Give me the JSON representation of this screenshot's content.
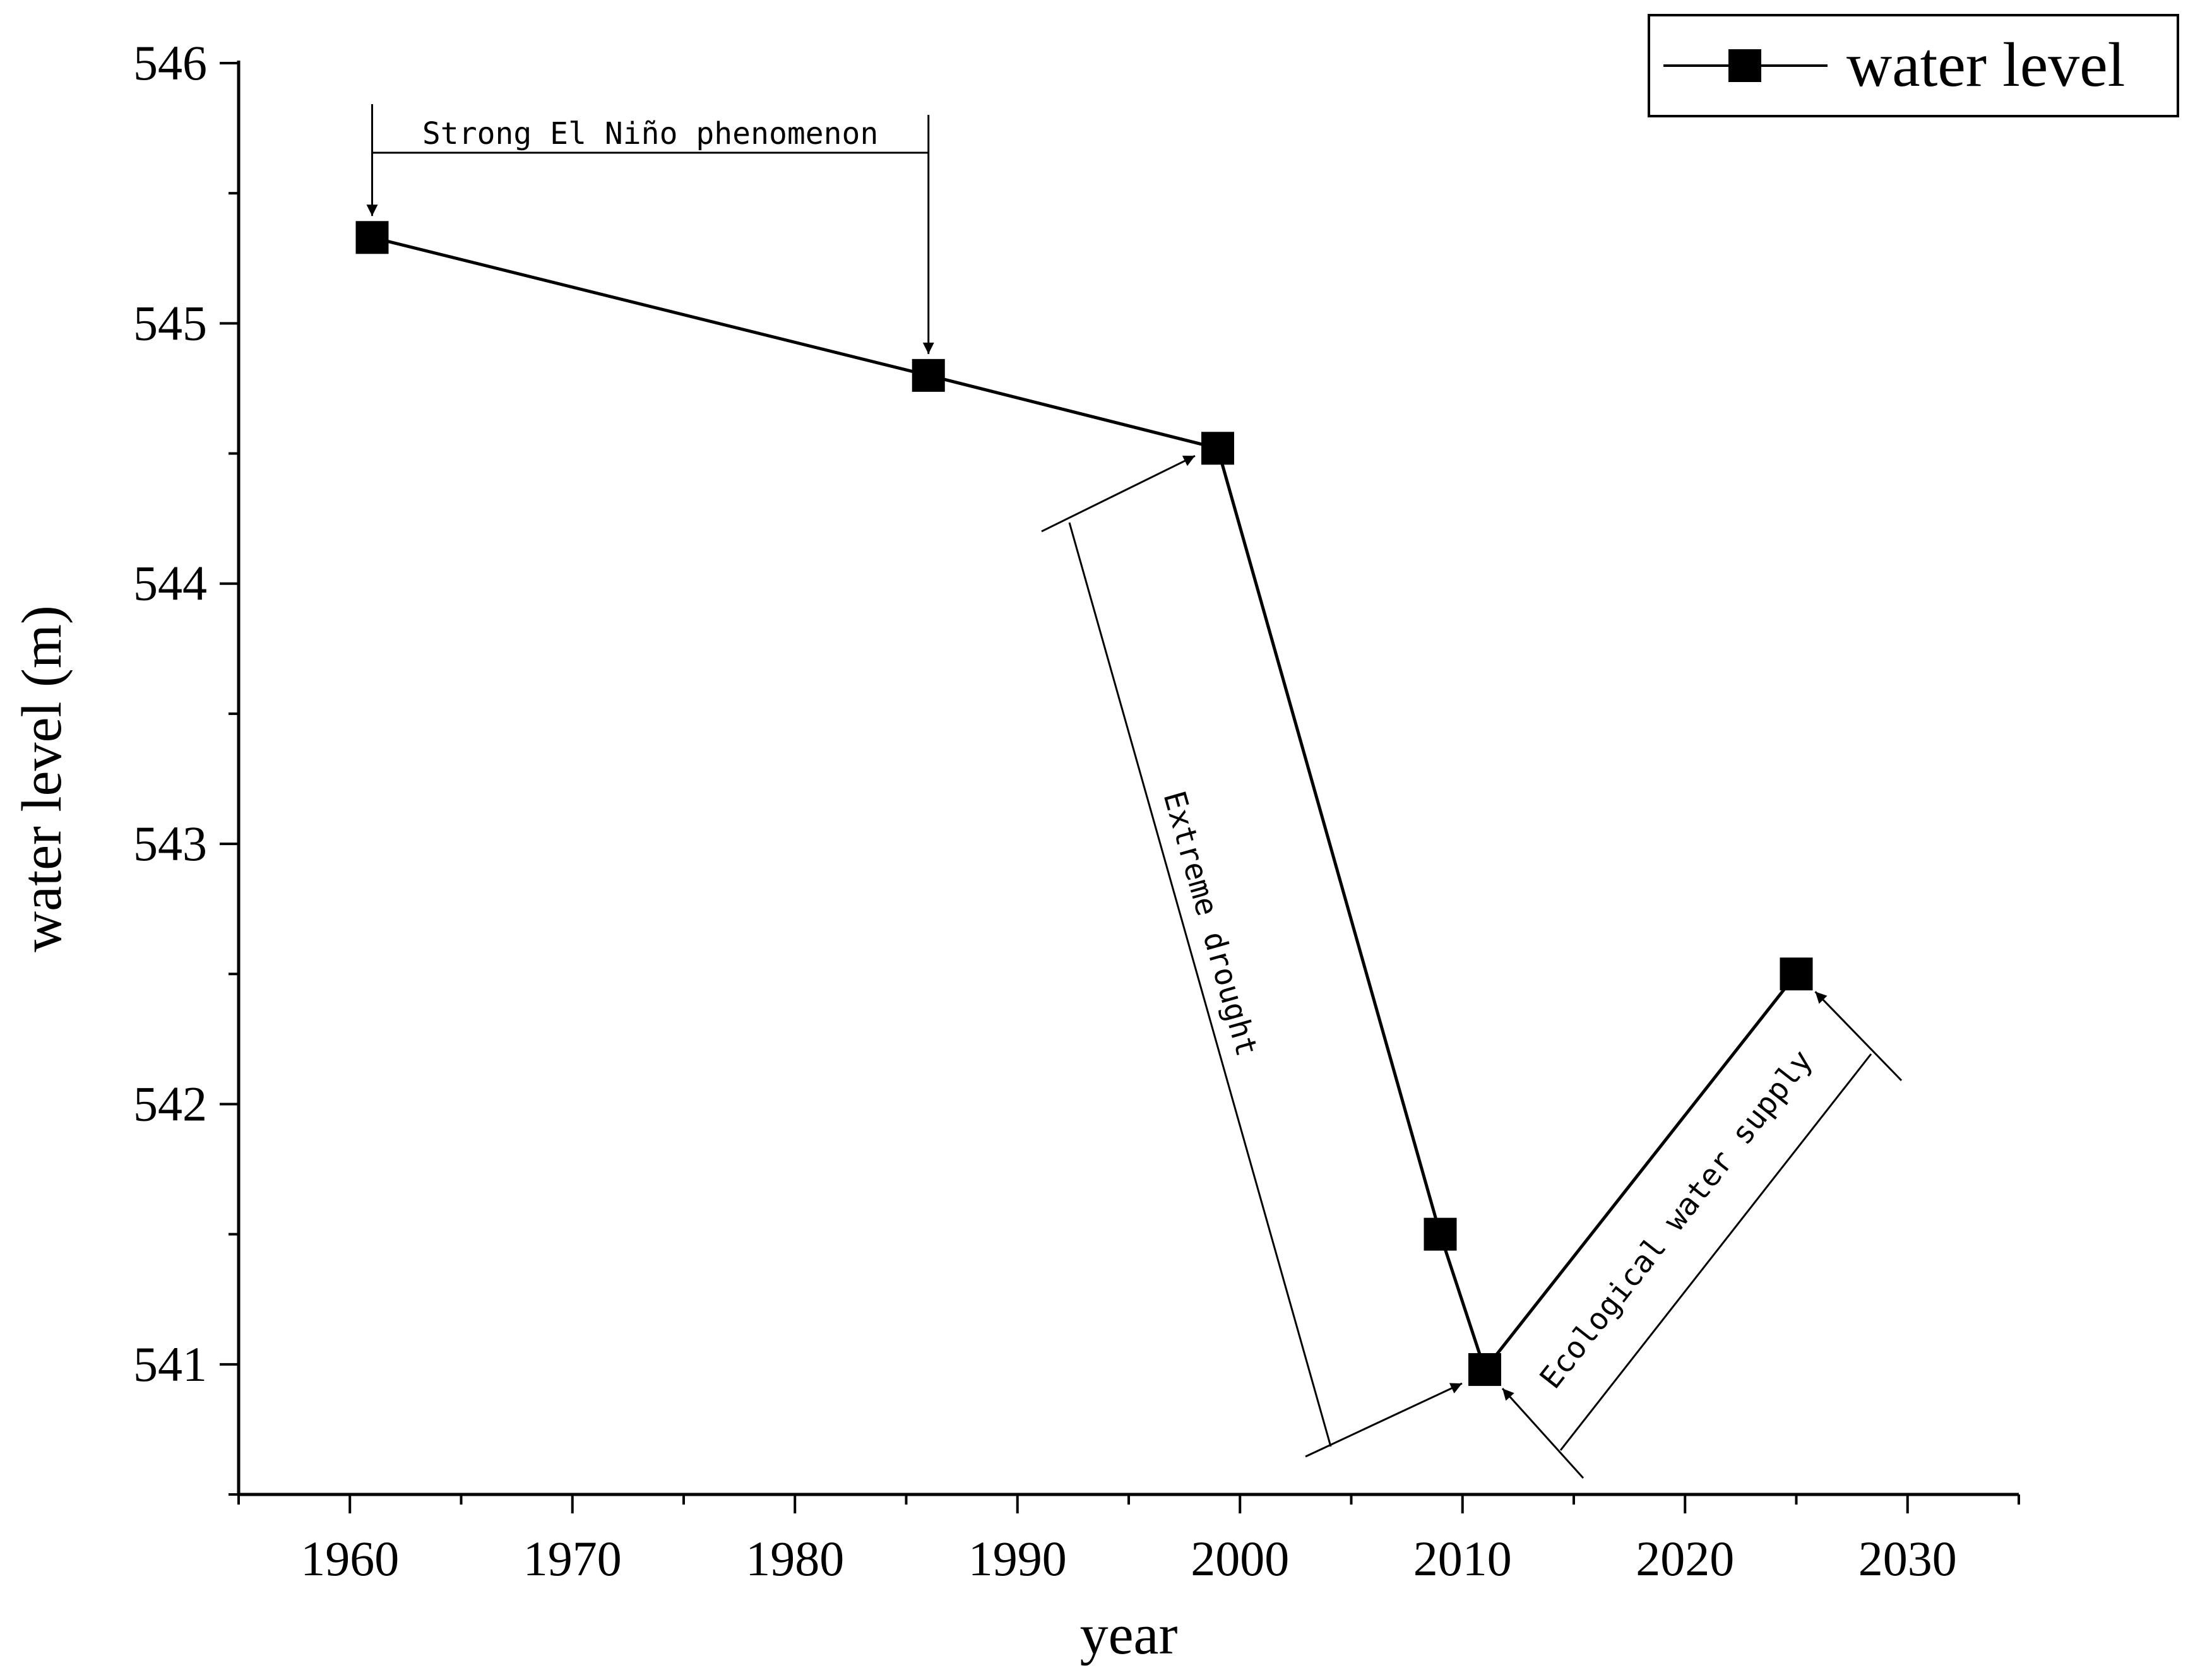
{
  "chart_data": {
    "type": "line",
    "xlabel": "year",
    "ylabel": "water level (m)",
    "xlim": [
      1955,
      2035
    ],
    "ylim": [
      540.5,
      546
    ],
    "xticks": [
      1960,
      1970,
      1980,
      1990,
      2000,
      2010,
      2020,
      2030
    ],
    "yticks": [
      541,
      542,
      543,
      544,
      545,
      546
    ],
    "x_tick_labels": [
      "1960",
      "1970",
      "1980",
      "1990",
      "2000",
      "2010",
      "2020",
      "2030"
    ],
    "y_tick_labels": [
      "541",
      "542",
      "543",
      "544",
      "545",
      "546"
    ],
    "grid": false,
    "legend_position": "top-right",
    "series": [
      {
        "name": "water level",
        "marker": "square",
        "color": "#000000",
        "points": [
          {
            "x": 1961,
            "y": 545.33
          },
          {
            "x": 1986,
            "y": 544.8
          },
          {
            "x": 1999,
            "y": 544.52
          },
          {
            "x": 2009,
            "y": 541.5
          },
          {
            "x": 2011,
            "y": 540.98
          },
          {
            "x": 2025,
            "y": 542.5
          }
        ]
      }
    ],
    "annotations": [
      {
        "name": "el-nino",
        "text": "Strong El Niño phenomenon"
      },
      {
        "name": "drought",
        "text": "Extreme drought"
      },
      {
        "name": "eco",
        "text": "Ecological water supply"
      }
    ]
  }
}
